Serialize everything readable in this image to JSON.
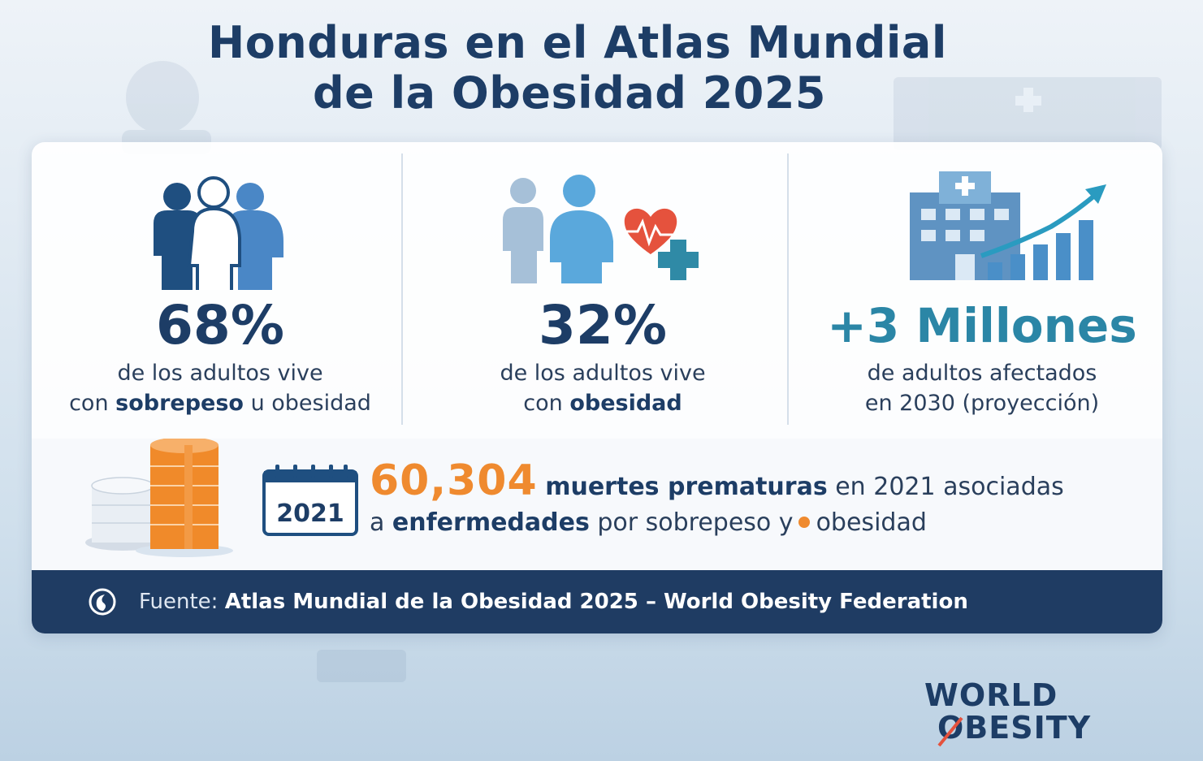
{
  "title": {
    "line1": "Honduras en el Atlas Mundial",
    "line2": "de la Obesidad 2025"
  },
  "stats": [
    {
      "icon": "group-of-people-icon",
      "value": "68%",
      "desc_line1": "de los adultos vive",
      "desc_line2_pre": "con ",
      "desc_line2_bold": "sobrepeso",
      "desc_line2_post": " u obesidad"
    },
    {
      "icon": "people-with-heart-icon",
      "value": "32%",
      "desc_line1": "de los adultos vive",
      "desc_line2_pre": "con ",
      "desc_line2_bold": "obesidad"
    },
    {
      "icon": "hospital-growth-chart-icon",
      "value": "+3 Millones",
      "desc_line1": "de adultos afectados",
      "desc_line2": "en 2030 (proyección)"
    }
  ],
  "deaths": {
    "calendar_year": "2021",
    "number": "60,304",
    "bold1": "muertes prematuras",
    "text1": " en 2021 asociadas",
    "text2_pre": "a ",
    "bold2": "enfermedades",
    "text2_mid": " por sobrepeso y",
    "text2_end": "obesidad"
  },
  "footer": {
    "label": "Fuente: ",
    "source": "Atlas Mundial de la Obesidad 2025 – World Obesity Federation"
  },
  "logo": {
    "line1": "WORLD",
    "line2": "OBESITY"
  },
  "colors": {
    "navy": "#1d3d66",
    "teal": "#2b86a6",
    "orange": "#ef8a2f",
    "footer_bg": "#1f3c63"
  }
}
